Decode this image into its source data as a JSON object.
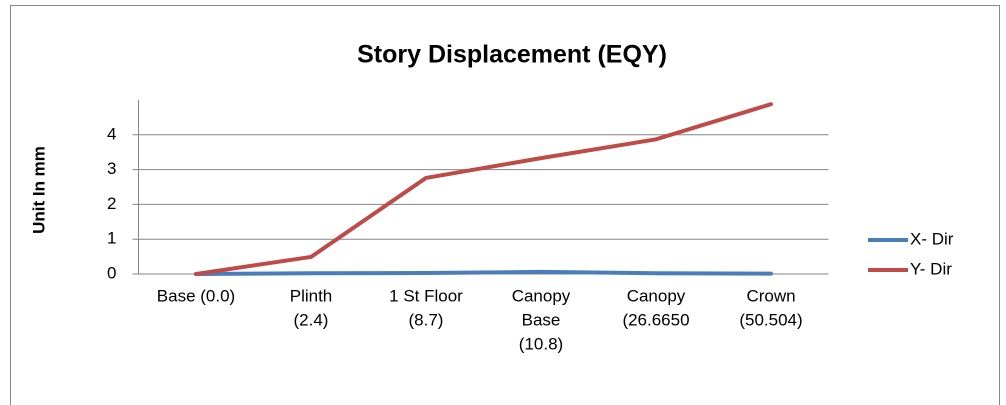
{
  "chart_data": {
    "type": "line",
    "title": "Story Displacement  (EQY)",
    "y_label": "Unit In mm",
    "categories": [
      [
        "Base (0.0)"
      ],
      [
        "Plinth",
        "(2.4)"
      ],
      [
        "1 St Floor",
        "(8.7)"
      ],
      [
        "Canopy",
        "Base",
        "(10.8)"
      ],
      [
        "Canopy",
        "(26.6650"
      ],
      [
        "Crown",
        "(50.504)"
      ]
    ],
    "series": [
      {
        "name": "X- Dir",
        "color": "#4a7ebb",
        "values": [
          0,
          0.02,
          0.03,
          0.06,
          0.02,
          0.01
        ]
      },
      {
        "name": "Y- Dir",
        "color": "#be4b48",
        "values": [
          0,
          0.49,
          2.76,
          3.33,
          3.87,
          4.88
        ]
      }
    ],
    "ylim": [
      0,
      5
    ],
    "yticks": [
      0,
      1,
      2,
      3,
      4
    ],
    "grid": true,
    "legend": "right"
  }
}
